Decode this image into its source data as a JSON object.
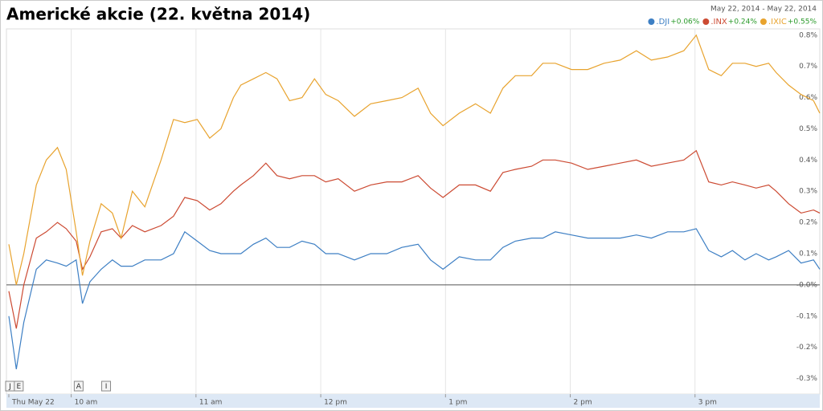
{
  "chart_data": {
    "type": "line",
    "title": "Americké akcie (22. května 2014)",
    "date_range": "May 22, 2014  -  May 22, 2014",
    "x": [
      9.5,
      9.56,
      9.62,
      9.72,
      9.8,
      9.89,
      9.96,
      10.04,
      10.09,
      10.15,
      10.24,
      10.33,
      10.4,
      10.49,
      10.59,
      10.72,
      10.82,
      10.91,
      11.01,
      11.11,
      11.2,
      11.3,
      11.36,
      11.46,
      11.56,
      11.65,
      11.75,
      11.85,
      11.95,
      12.04,
      12.14,
      12.27,
      12.4,
      12.53,
      12.65,
      12.78,
      12.88,
      12.98,
      13.11,
      13.24,
      13.36,
      13.46,
      13.56,
      13.69,
      13.78,
      13.88,
      14.01,
      14.14,
      14.27,
      14.4,
      14.53,
      14.65,
      14.78,
      14.91,
      15.01,
      15.11,
      15.21,
      15.3,
      15.4,
      15.49,
      15.59,
      15.65,
      15.75,
      15.85,
      15.95,
      16.0
    ],
    "series": [
      {
        "name": ".DJI",
        "change": "+0.06%",
        "color": "#3d7fc4",
        "values": [
          -0.1,
          -0.27,
          -0.12,
          0.05,
          0.08,
          0.07,
          0.06,
          0.08,
          -0.06,
          0.01,
          0.05,
          0.08,
          0.06,
          0.06,
          0.08,
          0.08,
          0.1,
          0.17,
          0.14,
          0.11,
          0.1,
          0.1,
          0.1,
          0.13,
          0.15,
          0.12,
          0.12,
          0.14,
          0.13,
          0.1,
          0.1,
          0.08,
          0.1,
          0.1,
          0.12,
          0.13,
          0.08,
          0.05,
          0.09,
          0.08,
          0.08,
          0.12,
          0.14,
          0.15,
          0.15,
          0.17,
          0.16,
          0.15,
          0.15,
          0.15,
          0.16,
          0.15,
          0.17,
          0.17,
          0.18,
          0.11,
          0.09,
          0.11,
          0.08,
          0.1,
          0.08,
          0.09,
          0.11,
          0.07,
          0.08,
          0.05
        ]
      },
      {
        "name": ".INX",
        "change": "+0.24%",
        "color": "#cc4a32",
        "values": [
          -0.02,
          -0.14,
          0.0,
          0.15,
          0.17,
          0.2,
          0.18,
          0.14,
          0.05,
          0.09,
          0.17,
          0.18,
          0.15,
          0.19,
          0.17,
          0.19,
          0.22,
          0.28,
          0.27,
          0.24,
          0.26,
          0.3,
          0.32,
          0.35,
          0.39,
          0.35,
          0.34,
          0.35,
          0.35,
          0.33,
          0.34,
          0.3,
          0.32,
          0.33,
          0.33,
          0.35,
          0.31,
          0.28,
          0.32,
          0.32,
          0.3,
          0.36,
          0.37,
          0.38,
          0.4,
          0.4,
          0.39,
          0.37,
          0.38,
          0.39,
          0.4,
          0.38,
          0.39,
          0.4,
          0.43,
          0.33,
          0.32,
          0.33,
          0.32,
          0.31,
          0.32,
          0.3,
          0.26,
          0.23,
          0.24,
          0.23
        ]
      },
      {
        "name": ".IXIC",
        "change": "+0.55%",
        "color": "#e8a32e",
        "values": [
          0.13,
          0.0,
          0.1,
          0.32,
          0.4,
          0.44,
          0.37,
          0.17,
          0.03,
          0.14,
          0.26,
          0.23,
          0.15,
          0.3,
          0.25,
          0.4,
          0.53,
          0.52,
          0.53,
          0.47,
          0.5,
          0.6,
          0.64,
          0.66,
          0.68,
          0.66,
          0.59,
          0.6,
          0.66,
          0.61,
          0.59,
          0.54,
          0.58,
          0.59,
          0.6,
          0.63,
          0.55,
          0.51,
          0.55,
          0.58,
          0.55,
          0.63,
          0.67,
          0.67,
          0.71,
          0.71,
          0.69,
          0.69,
          0.71,
          0.72,
          0.75,
          0.72,
          0.73,
          0.75,
          0.8,
          0.69,
          0.67,
          0.71,
          0.71,
          0.7,
          0.71,
          0.68,
          0.64,
          0.61,
          0.59,
          0.55
        ]
      }
    ],
    "xlim": [
      9.5,
      16.0
    ],
    "xticks": [
      {
        "value": 9.5,
        "label": "Thu May 22"
      },
      {
        "value": 10,
        "label": "10 am"
      },
      {
        "value": 11,
        "label": "11 am"
      },
      {
        "value": 12,
        "label": "12 pm"
      },
      {
        "value": 13,
        "label": "1 pm"
      },
      {
        "value": 14,
        "label": "2 pm"
      },
      {
        "value": 15,
        "label": "3 pm"
      }
    ],
    "ylim": [
      -0.35,
      0.82
    ],
    "yticks": [
      {
        "value": -0.3,
        "label": "-0.3%"
      },
      {
        "value": -0.2,
        "label": "-0.2%"
      },
      {
        "value": -0.1,
        "label": "-0.1%"
      },
      {
        "value": 0,
        "label": "-0.0%"
      },
      {
        "value": 0.1,
        "label": "0.1%"
      },
      {
        "value": 0.2,
        "label": "0.2%"
      },
      {
        "value": 0.3,
        "label": "0.3%"
      },
      {
        "value": 0.4,
        "label": "0.4%"
      },
      {
        "value": 0.5,
        "label": "0.5%"
      },
      {
        "value": 0.6,
        "label": "0.6%"
      },
      {
        "value": 0.7,
        "label": "0.7%"
      },
      {
        "value": 0.8,
        "label": "0.8%"
      }
    ],
    "annotations": [
      {
        "label": "J",
        "x": 9.5
      },
      {
        "label": "E",
        "x": 9.57
      },
      {
        "label": "A",
        "x": 10.05
      },
      {
        "label": "I",
        "x": 10.27
      }
    ],
    "grid": true,
    "legend": "top-right"
  }
}
